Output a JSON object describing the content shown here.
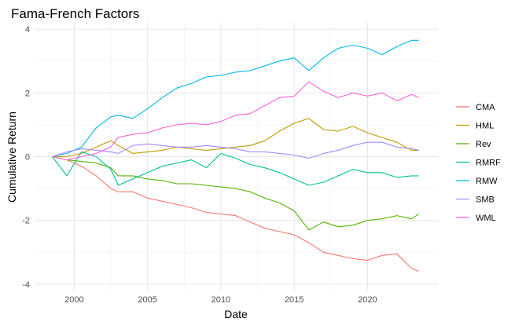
{
  "chart_data": {
    "type": "line",
    "title": "Fama-French Factors",
    "xlabel": "Date",
    "ylabel": "Cumulative Return",
    "xlim": [
      1997.3,
      2024.8
    ],
    "ylim": [
      -4.2,
      4.2
    ],
    "x_ticks": [
      2000,
      2005,
      2010,
      2015,
      2020
    ],
    "x_tick_labels": [
      "2000",
      "2005",
      "2010",
      "2015",
      "2020"
    ],
    "y_ticks": [
      -4,
      -2,
      0,
      2,
      4
    ],
    "y_tick_labels": [
      "-4",
      "-2",
      "0",
      "2",
      "4"
    ],
    "grid": true,
    "legend_position": "right",
    "series": [
      {
        "name": "CMA",
        "color": "#F8766D",
        "x": [
          1998.5,
          1999.5,
          2000.5,
          2001.5,
          2002.5,
          2003,
          2004,
          2005,
          2006,
          2007,
          2008,
          2009,
          2010,
          2011,
          2012,
          2013,
          2014,
          2015,
          2016,
          2017,
          2018,
          2019,
          2020,
          2021,
          2022,
          2023,
          2023.5
        ],
        "y": [
          0.0,
          -0.1,
          -0.3,
          -0.6,
          -1.0,
          -1.1,
          -1.1,
          -1.3,
          -1.4,
          -1.5,
          -1.6,
          -1.75,
          -1.8,
          -1.85,
          -2.05,
          -2.25,
          -2.35,
          -2.45,
          -2.7,
          -3.0,
          -3.1,
          -3.2,
          -3.25,
          -3.1,
          -3.05,
          -3.5,
          -3.6
        ]
      },
      {
        "name": "HML",
        "color": "#C49A00",
        "x": [
          1998.5,
          1999.5,
          2000.5,
          2001.5,
          2002.5,
          2003,
          2004,
          2005,
          2006,
          2007,
          2008,
          2009,
          2010,
          2011,
          2012,
          2013,
          2014,
          2015,
          2016,
          2017,
          2018,
          2019,
          2020,
          2021,
          2022,
          2023,
          2023.5
        ],
        "y": [
          0.0,
          0.0,
          0.1,
          0.3,
          0.5,
          0.35,
          0.1,
          0.15,
          0.2,
          0.3,
          0.25,
          0.2,
          0.25,
          0.3,
          0.35,
          0.5,
          0.8,
          1.05,
          1.2,
          0.85,
          0.8,
          0.95,
          0.75,
          0.6,
          0.45,
          0.2,
          0.2
        ]
      },
      {
        "name": "Rev",
        "color": "#53B400",
        "x": [
          1998.5,
          1999.5,
          2000.5,
          2001.5,
          2002.5,
          2003,
          2004,
          2005,
          2006,
          2007,
          2008,
          2009,
          2010,
          2011,
          2012,
          2013,
          2014,
          2015,
          2016,
          2017,
          2018,
          2019,
          2020,
          2021,
          2022,
          2023,
          2023.5
        ],
        "y": [
          0.0,
          -0.1,
          -0.15,
          -0.2,
          -0.35,
          -0.6,
          -0.6,
          -0.7,
          -0.75,
          -0.85,
          -0.85,
          -0.9,
          -0.95,
          -1.0,
          -1.1,
          -1.3,
          -1.45,
          -1.7,
          -2.3,
          -2.05,
          -2.2,
          -2.15,
          -2.0,
          -1.95,
          -1.85,
          -1.95,
          -1.8
        ]
      },
      {
        "name": "RMRF",
        "color": "#00C094",
        "x": [
          1998.5,
          1999.5,
          2000.5,
          2001.5,
          2002.5,
          2003,
          2004,
          2005,
          2006,
          2007,
          2008,
          2009,
          2010,
          2011,
          2012,
          2013,
          2014,
          2015,
          2016,
          2017,
          2018,
          2019,
          2020,
          2021,
          2022,
          2023,
          2023.5
        ],
        "y": [
          0.0,
          -0.6,
          0.15,
          0.0,
          -0.4,
          -0.9,
          -0.7,
          -0.5,
          -0.3,
          -0.2,
          -0.1,
          -0.35,
          0.1,
          -0.05,
          -0.25,
          -0.35,
          -0.5,
          -0.7,
          -0.9,
          -0.8,
          -0.6,
          -0.4,
          -0.5,
          -0.5,
          -0.65,
          -0.6,
          -0.6
        ]
      },
      {
        "name": "RMW",
        "color": "#00B6EB",
        "x": [
          1998.5,
          1999.5,
          2000.5,
          2001.5,
          2002.5,
          2003,
          2004,
          2005,
          2006,
          2007,
          2008,
          2009,
          2010,
          2011,
          2012,
          2013,
          2014,
          2015,
          2016,
          2017,
          2018,
          2019,
          2020,
          2021,
          2022,
          2023,
          2023.5
        ],
        "y": [
          0.0,
          0.1,
          0.3,
          0.9,
          1.25,
          1.3,
          1.2,
          1.5,
          1.85,
          2.15,
          2.3,
          2.5,
          2.55,
          2.65,
          2.7,
          2.85,
          3.0,
          3.1,
          2.7,
          3.1,
          3.4,
          3.5,
          3.4,
          3.2,
          3.45,
          3.65,
          3.65
        ]
      },
      {
        "name": "SMB",
        "color": "#A58AFF",
        "x": [
          1998.5,
          1999.5,
          2000.5,
          2001.5,
          2002.5,
          2003,
          2004,
          2005,
          2006,
          2007,
          2008,
          2009,
          2010,
          2011,
          2012,
          2013,
          2014,
          2015,
          2016,
          2017,
          2018,
          2019,
          2020,
          2021,
          2022,
          2023,
          2023.5
        ],
        "y": [
          0.0,
          0.15,
          0.25,
          0.2,
          0.15,
          0.1,
          0.35,
          0.4,
          0.35,
          0.3,
          0.3,
          0.35,
          0.3,
          0.25,
          0.15,
          0.15,
          0.1,
          0.05,
          -0.05,
          0.1,
          0.2,
          0.35,
          0.45,
          0.45,
          0.3,
          0.25,
          0.2
        ]
      },
      {
        "name": "WML",
        "color": "#FB61D7",
        "x": [
          1998.5,
          1999.5,
          2000.5,
          2001.5,
          2002.5,
          2003,
          2004,
          2005,
          2006,
          2007,
          2008,
          2009,
          2010,
          2011,
          2012,
          2013,
          2014,
          2015,
          2016,
          2017,
          2018,
          2019,
          2020,
          2021,
          2022,
          2023,
          2023.5
        ],
        "y": [
          0.0,
          -0.1,
          0.0,
          0.1,
          0.3,
          0.6,
          0.7,
          0.75,
          0.9,
          1.0,
          1.05,
          1.0,
          1.1,
          1.3,
          1.35,
          1.6,
          1.85,
          1.9,
          2.35,
          2.05,
          1.85,
          2.0,
          1.9,
          2.0,
          1.75,
          1.95,
          1.85
        ]
      }
    ]
  }
}
